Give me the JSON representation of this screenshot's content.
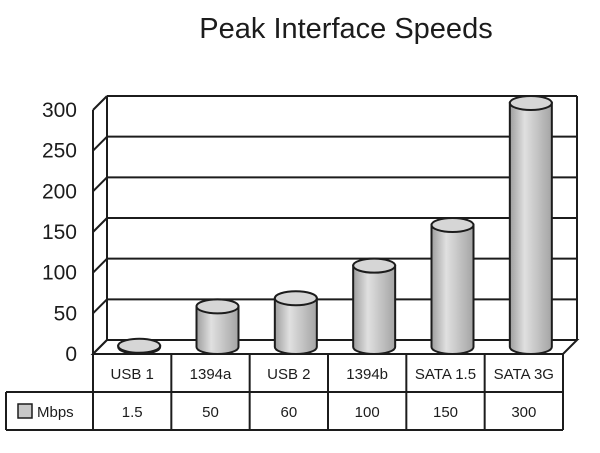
{
  "chart_data": {
    "type": "bar",
    "title": "Peak Interface Speeds",
    "categories": [
      "USB 1",
      "1394a",
      "USB 2",
      "1394b",
      "SATA 1.5",
      "SATA 3G"
    ],
    "series": [
      {
        "name": "Mbps",
        "values": [
          1.5,
          50,
          60,
          100,
          150,
          300
        ]
      }
    ],
    "value_labels": [
      "1.5",
      "50",
      "60",
      "100",
      "150",
      "300"
    ],
    "y_ticks": [
      "0",
      "50",
      "100",
      "150",
      "200",
      "250",
      "300"
    ],
    "ylim": [
      0,
      300
    ],
    "grid": true,
    "legend": "in data table",
    "bar_shape": "cylinder",
    "colors": {
      "bar": "#c8c8c8",
      "ink": "#1c1c1c",
      "background": "#ffffff"
    }
  }
}
